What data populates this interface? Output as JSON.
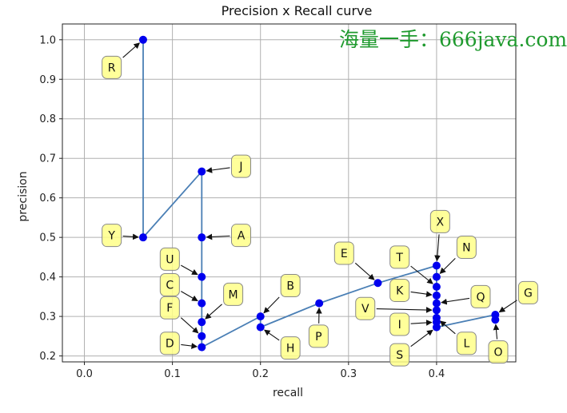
{
  "watermark": "海量一手：666java.com",
  "chart_data": {
    "type": "line",
    "title": "Precision x Recall curve",
    "xlabel": "recall",
    "ylabel": "precision",
    "xlim": [
      -0.025,
      0.49
    ],
    "ylim": [
      0.185,
      1.04
    ],
    "xticks": [
      0.0,
      0.1,
      0.2,
      0.3,
      0.4
    ],
    "xtick_labels": [
      "0.0",
      "0.1",
      "0.2",
      "0.3",
      "0.4"
    ],
    "yticks": [
      0.2,
      0.3,
      0.4,
      0.5,
      0.6,
      0.7,
      0.8,
      0.9,
      1.0
    ],
    "ytick_labels": [
      "0.2",
      "0.3",
      "0.4",
      "0.5",
      "0.6",
      "0.7",
      "0.8",
      "0.9",
      "1.0"
    ],
    "grid": true,
    "line_color": "#4a7fb5",
    "marker_color": "#0000ee",
    "points": [
      {
        "label": "R",
        "x": 0.0667,
        "y": 1.0,
        "tx": 0.031,
        "ty": 0.93
      },
      {
        "label": "Y",
        "x": 0.0667,
        "y": 0.5,
        "tx": 0.031,
        "ty": 0.505
      },
      {
        "label": "J",
        "x": 0.1333,
        "y": 0.6667,
        "tx": 0.178,
        "ty": 0.68
      },
      {
        "label": "A",
        "x": 0.1333,
        "y": 0.5,
        "tx": 0.178,
        "ty": 0.505
      },
      {
        "label": "U",
        "x": 0.1333,
        "y": 0.4,
        "tx": 0.097,
        "ty": 0.445
      },
      {
        "label": "C",
        "x": 0.1333,
        "y": 0.3333,
        "tx": 0.097,
        "ty": 0.38
      },
      {
        "label": "M",
        "x": 0.1333,
        "y": 0.2857,
        "tx": 0.169,
        "ty": 0.356
      },
      {
        "label": "F",
        "x": 0.1333,
        "y": 0.25,
        "tx": 0.097,
        "ty": 0.322
      },
      {
        "label": "D",
        "x": 0.1333,
        "y": 0.2222,
        "tx": 0.097,
        "ty": 0.232
      },
      {
        "label": "B",
        "x": 0.2,
        "y": 0.3,
        "tx": 0.234,
        "ty": 0.378
      },
      {
        "label": "H",
        "x": 0.2,
        "y": 0.2727,
        "tx": 0.234,
        "ty": 0.22
      },
      {
        "label": "P",
        "x": 0.2667,
        "y": 0.3333,
        "tx": 0.266,
        "ty": 0.25
      },
      {
        "label": "E",
        "x": 0.3333,
        "y": 0.3846,
        "tx": 0.295,
        "ty": 0.46
      },
      {
        "label": "T",
        "x": 0.4,
        "y": 0.375,
        "tx": 0.358,
        "ty": 0.45
      },
      {
        "label": "K",
        "x": 0.4,
        "y": 0.3529,
        "tx": 0.358,
        "ty": 0.366
      },
      {
        "label": "V",
        "x": 0.4,
        "y": 0.3158,
        "tx": 0.319,
        "ty": 0.32
      },
      {
        "label": "I",
        "x": 0.4,
        "y": 0.2857,
        "tx": 0.358,
        "ty": 0.28
      },
      {
        "label": "S",
        "x": 0.4,
        "y": 0.2727,
        "tx": 0.358,
        "ty": 0.203
      },
      {
        "label": "X",
        "x": 0.4,
        "y": 0.4286,
        "tx": 0.404,
        "ty": 0.54
      },
      {
        "label": "N",
        "x": 0.4,
        "y": 0.4,
        "tx": 0.434,
        "ty": 0.475
      },
      {
        "label": "Q",
        "x": 0.4,
        "y": 0.3333,
        "tx": 0.45,
        "ty": 0.35
      },
      {
        "label": "L",
        "x": 0.4,
        "y": 0.2963,
        "tx": 0.434,
        "ty": 0.232
      },
      {
        "label": "G",
        "x": 0.4667,
        "y": 0.3043,
        "tx": 0.504,
        "ty": 0.36
      },
      {
        "label": "O",
        "x": 0.4667,
        "y": 0.2917,
        "tx": 0.47,
        "ty": 0.21
      }
    ],
    "curve_x": [
      0.0667,
      0.0667,
      0.0667,
      0.1333,
      0.1333,
      0.1333,
      0.1333,
      0.1333,
      0.1333,
      0.1333,
      0.1333,
      0.2,
      0.2,
      0.2667,
      0.3333,
      0.4,
      0.4,
      0.4,
      0.4,
      0.4,
      0.4,
      0.4,
      0.4,
      0.4,
      0.4,
      0.4667,
      0.4667
    ],
    "curve_y": [
      1.0,
      0.5,
      0.5,
      0.6667,
      0.5,
      0.4,
      0.3333,
      0.2857,
      0.25,
      0.2222,
      0.2222,
      0.3,
      0.2727,
      0.3333,
      0.3846,
      0.4286,
      0.4,
      0.375,
      0.3529,
      0.3333,
      0.3158,
      0.2963,
      0.2857,
      0.2727,
      0.2727,
      0.3043,
      0.2917
    ]
  }
}
